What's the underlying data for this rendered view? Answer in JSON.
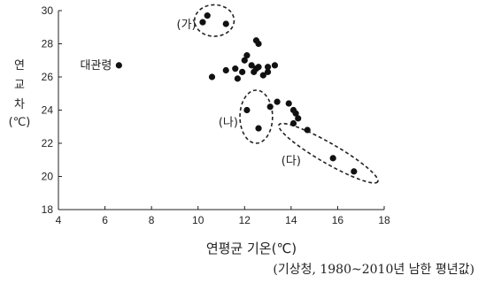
{
  "chart_data": {
    "type": "scatter",
    "title": "",
    "xlabel": "연평균 기온(℃)",
    "ylabel": "연교차(℃)",
    "ylabel_chars": [
      "연",
      "교",
      "차",
      "(℃)"
    ],
    "source": "(기상청, 1980~2010년 남한 평년값)",
    "xlim": [
      4,
      18
    ],
    "ylim": [
      18,
      30
    ],
    "xticks": [
      4,
      6,
      8,
      10,
      12,
      14,
      16,
      18
    ],
    "yticks": [
      18,
      20,
      22,
      24,
      26,
      28,
      30
    ],
    "grid": false,
    "point_color": "#111111",
    "labeled_point": {
      "label": "대관령",
      "x": 6.6,
      "y": 26.7
    },
    "points": [
      {
        "x": 6.6,
        "y": 26.7
      },
      {
        "x": 10.2,
        "y": 29.3
      },
      {
        "x": 10.4,
        "y": 29.7
      },
      {
        "x": 11.2,
        "y": 29.2
      },
      {
        "x": 10.6,
        "y": 26.0
      },
      {
        "x": 11.2,
        "y": 26.4
      },
      {
        "x": 11.6,
        "y": 26.5
      },
      {
        "x": 11.7,
        "y": 25.9
      },
      {
        "x": 11.9,
        "y": 26.3
      },
      {
        "x": 12.0,
        "y": 27.0
      },
      {
        "x": 12.1,
        "y": 27.3
      },
      {
        "x": 12.3,
        "y": 26.7
      },
      {
        "x": 12.4,
        "y": 26.3
      },
      {
        "x": 12.5,
        "y": 26.5
      },
      {
        "x": 12.5,
        "y": 28.2
      },
      {
        "x": 12.6,
        "y": 28.0
      },
      {
        "x": 12.6,
        "y": 26.6
      },
      {
        "x": 12.8,
        "y": 26.1
      },
      {
        "x": 13.0,
        "y": 26.3
      },
      {
        "x": 13.0,
        "y": 26.6
      },
      {
        "x": 13.3,
        "y": 26.7
      },
      {
        "x": 12.1,
        "y": 24.0
      },
      {
        "x": 12.6,
        "y": 22.9
      },
      {
        "x": 13.1,
        "y": 24.2
      },
      {
        "x": 13.4,
        "y": 24.5
      },
      {
        "x": 13.9,
        "y": 24.4
      },
      {
        "x": 14.1,
        "y": 24.0
      },
      {
        "x": 14.2,
        "y": 23.8
      },
      {
        "x": 14.1,
        "y": 23.2
      },
      {
        "x": 14.3,
        "y": 23.5
      },
      {
        "x": 14.7,
        "y": 22.8
      },
      {
        "x": 15.8,
        "y": 21.1
      },
      {
        "x": 16.7,
        "y": 20.3
      }
    ],
    "groups": [
      {
        "label": "(가)",
        "cx": 10.7,
        "cy": 29.4,
        "rx": 0.85,
        "ry": 0.95,
        "rotate": 0,
        "label_x": 9.5,
        "label_y": 29.2
      },
      {
        "label": "(나)",
        "cx": 12.5,
        "cy": 23.6,
        "rx": 0.7,
        "ry": 1.6,
        "rotate": 0,
        "label_x": 11.3,
        "label_y": 23.3
      },
      {
        "label": "(다)",
        "cx": 15.6,
        "cy": 21.4,
        "rx": 2.45,
        "ry": 0.6,
        "rotate": 30,
        "label_x": 14.0,
        "label_y": 21.0
      }
    ]
  }
}
